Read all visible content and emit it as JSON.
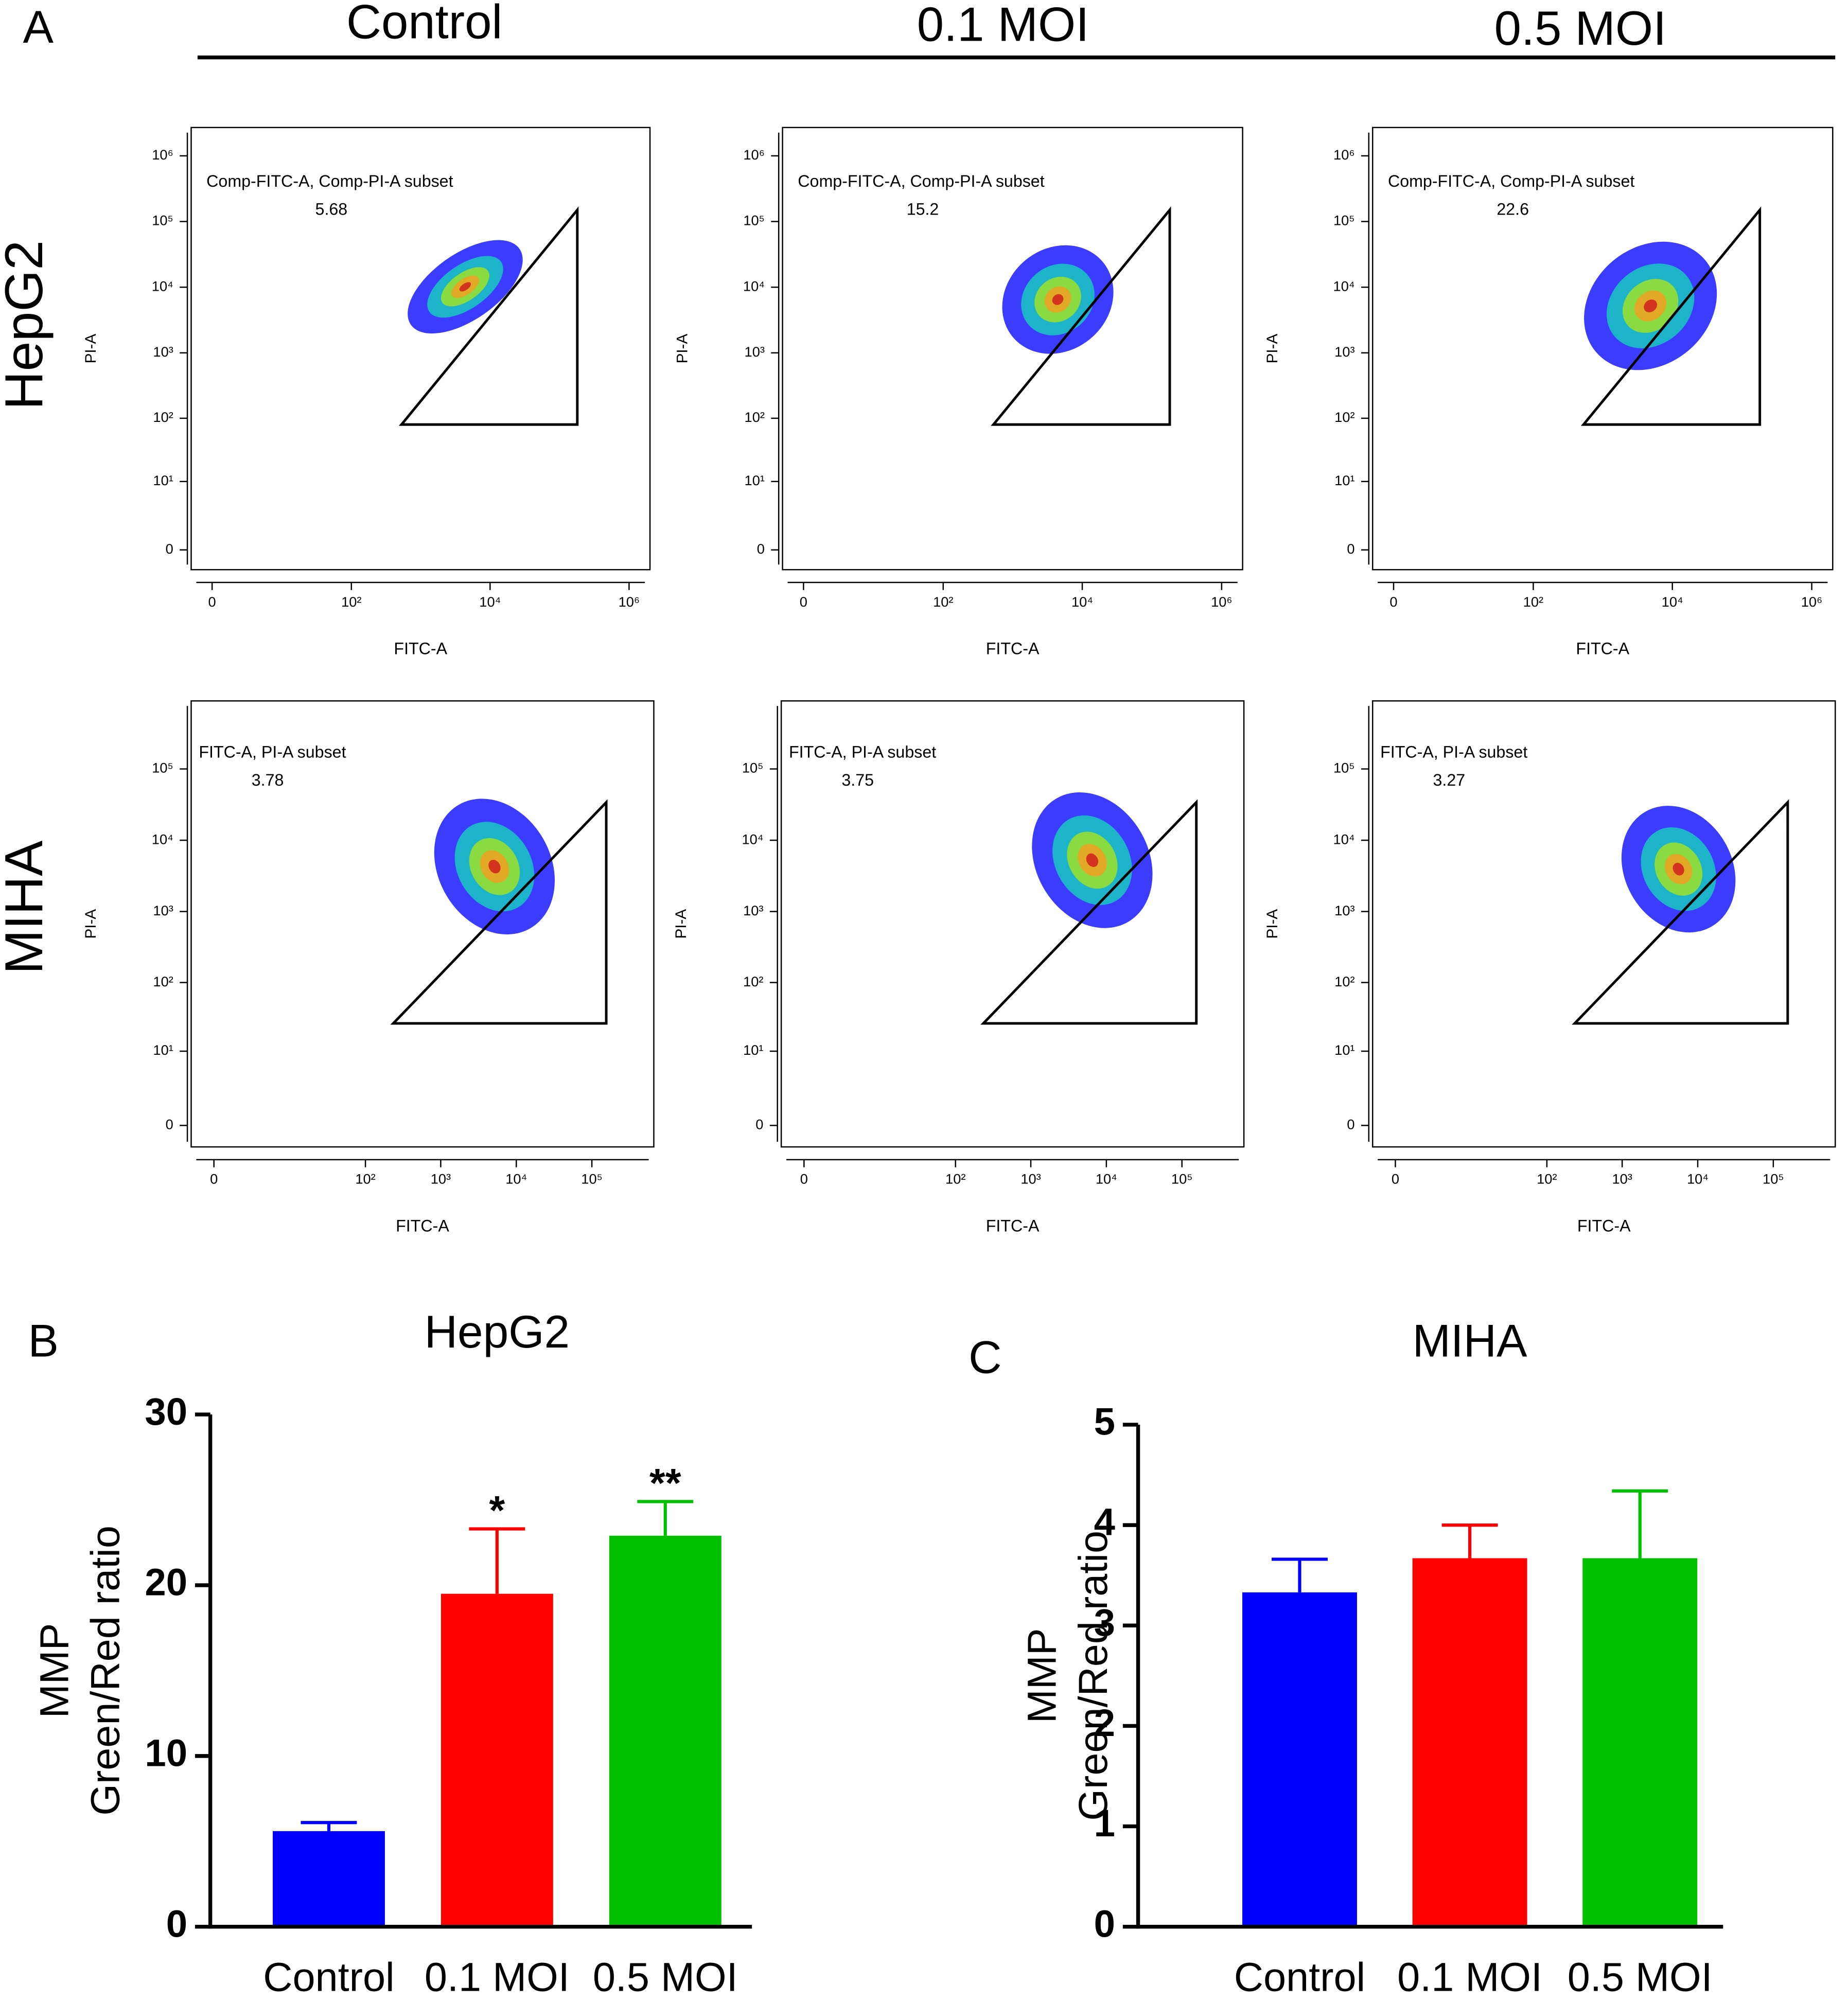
{
  "figure": {
    "panel_labels": [
      "A",
      "B",
      "C"
    ],
    "column_headers": [
      "Control",
      "0.1 MOI",
      "0.5 MOI"
    ],
    "row_labels": [
      "HepG2",
      "MIHA"
    ]
  },
  "chart_data": [
    {
      "type": "scatter",
      "gate_label": "Comp-FITC-A, Comp-PI-A subset",
      "gate_value": 5.68,
      "x_label": "FITC-A",
      "y_label": "PI-A",
      "xscale": "biex",
      "yscale": "biex",
      "xlim": [
        -1,
        2000000
      ],
      "ylim": [
        -1,
        2700000
      ],
      "gate": [
        [
          530,
          80
        ],
        [
          180000,
          150000
        ],
        [
          180000,
          80
        ]
      ],
      "xticks": [
        0,
        {
          "value": 100,
          "label": "10²"
        },
        {
          "value": 10000,
          "label": "10⁴"
        },
        {
          "value": 1000000,
          "label": "10⁶"
        }
      ],
      "yticks": [
        0,
        {
          "value": 10,
          "label": "10¹"
        },
        {
          "value": 100,
          "label": "10²"
        },
        {
          "value": 1000,
          "label": "10³"
        },
        {
          "value": 10000,
          "label": "10⁴"
        },
        {
          "value": 100000,
          "label": "10⁵"
        },
        {
          "value": 1000000,
          "label": "10⁶"
        }
      ]
    },
    {
      "type": "scatter",
      "gate_label": "Comp-FITC-A, Comp-PI-A subset",
      "gate_value": 15.2,
      "x_label": "FITC-A",
      "y_label": "PI-A",
      "xscale": "biex",
      "yscale": "biex",
      "xlim": [
        -1,
        2000000
      ],
      "ylim": [
        -1,
        2700000
      ],
      "gate": [
        [
          530,
          80
        ],
        [
          180000,
          150000
        ],
        [
          180000,
          80
        ]
      ],
      "xticks": [
        0,
        {
          "value": 100,
          "label": "10²"
        },
        {
          "value": 10000,
          "label": "10⁴"
        },
        {
          "value": 1000000,
          "label": "10⁶"
        }
      ],
      "yticks": [
        0,
        {
          "value": 10,
          "label": "10¹"
        },
        {
          "value": 100,
          "label": "10²"
        },
        {
          "value": 1000,
          "label": "10³"
        },
        {
          "value": 10000,
          "label": "10⁴"
        },
        {
          "value": 100000,
          "label": "10⁵"
        },
        {
          "value": 1000000,
          "label": "10⁶"
        }
      ]
    },
    {
      "type": "scatter",
      "gate_label": "Comp-FITC-A, Comp-PI-A subset",
      "gate_value": 22.6,
      "x_label": "FITC-A",
      "y_label": "PI-A",
      "xscale": "biex",
      "yscale": "biex",
      "xlim": [
        -1,
        2000000
      ],
      "ylim": [
        -1,
        2700000
      ],
      "gate": [
        [
          530,
          80
        ],
        [
          180000,
          150000
        ],
        [
          180000,
          80
        ]
      ],
      "xticks": [
        0,
        {
          "value": 100,
          "label": "10²"
        },
        {
          "value": 10000,
          "label": "10⁴"
        },
        {
          "value": 1000000,
          "label": "10⁶"
        }
      ],
      "yticks": [
        0,
        {
          "value": 10,
          "label": "10¹"
        },
        {
          "value": 100,
          "label": "10²"
        },
        {
          "value": 1000,
          "label": "10³"
        },
        {
          "value": 10000,
          "label": "10⁴"
        },
        {
          "value": 100000,
          "label": "10⁵"
        },
        {
          "value": 1000000,
          "label": "10⁶"
        }
      ]
    },
    {
      "type": "scatter",
      "gate_label": "FITC-A, PI-A subset",
      "gate_value": 3.78,
      "x_label": "FITC-A",
      "y_label": "PI-A",
      "xscale": "biex",
      "yscale": "biex",
      "xlim": [
        -1,
        660000
      ],
      "ylim": [
        -1,
        900000
      ],
      "gate": [
        [
          235,
          26
        ],
        [
          155000,
          34000
        ],
        [
          155000,
          26
        ]
      ],
      "xticks": [
        0,
        {
          "value": 100,
          "label": "10²"
        },
        {
          "value": 1000,
          "label": "10³"
        },
        {
          "value": 10000,
          "label": "10⁴"
        },
        {
          "value": 100000,
          "label": "10⁵"
        }
      ],
      "yticks": [
        0,
        {
          "value": 10,
          "label": "10¹"
        },
        {
          "value": 100,
          "label": "10²"
        },
        {
          "value": 1000,
          "label": "10³"
        },
        {
          "value": 10000,
          "label": "10⁴"
        },
        {
          "value": 100000,
          "label": "10⁵"
        }
      ]
    },
    {
      "type": "scatter",
      "gate_label": "FITC-A, PI-A subset",
      "gate_value": 3.75,
      "x_label": "FITC-A",
      "y_label": "PI-A",
      "xscale": "biex",
      "yscale": "biex",
      "xlim": [
        -1,
        660000
      ],
      "ylim": [
        -1,
        900000
      ],
      "gate": [
        [
          235,
          26
        ],
        [
          155000,
          34000
        ],
        [
          155000,
          26
        ]
      ],
      "xticks": [
        0,
        {
          "value": 100,
          "label": "10²"
        },
        {
          "value": 1000,
          "label": "10³"
        },
        {
          "value": 10000,
          "label": "10⁴"
        },
        {
          "value": 100000,
          "label": "10⁵"
        }
      ],
      "yticks": [
        0,
        {
          "value": 10,
          "label": "10¹"
        },
        {
          "value": 100,
          "label": "10²"
        },
        {
          "value": 1000,
          "label": "10³"
        },
        {
          "value": 10000,
          "label": "10⁴"
        },
        {
          "value": 100000,
          "label": "10⁵"
        }
      ]
    },
    {
      "type": "scatter",
      "gate_label": "FITC-A, PI-A subset",
      "gate_value": 3.27,
      "x_label": "FITC-A",
      "y_label": "PI-A",
      "xscale": "biex",
      "yscale": "biex",
      "xlim": [
        -1,
        660000
      ],
      "ylim": [
        -1,
        900000
      ],
      "gate": [
        [
          235,
          26
        ],
        [
          155000,
          34000
        ],
        [
          155000,
          26
        ]
      ],
      "xticks": [
        0,
        {
          "value": 100,
          "label": "10²"
        },
        {
          "value": 1000,
          "label": "10³"
        },
        {
          "value": 10000,
          "label": "10⁴"
        },
        {
          "value": 100000,
          "label": "10⁵"
        }
      ],
      "yticks": [
        0,
        {
          "value": 10,
          "label": "10¹"
        },
        {
          "value": 100,
          "label": "10²"
        },
        {
          "value": 1000,
          "label": "10³"
        },
        {
          "value": 10000,
          "label": "10⁴"
        },
        {
          "value": 100000,
          "label": "10⁵"
        }
      ]
    },
    {
      "type": "bar",
      "title": "HepG2",
      "categories": [
        "Control",
        "0.1 MOI",
        "0.5 MOI"
      ],
      "values": [
        5.6,
        19.5,
        22.9
      ],
      "errors": [
        0.5,
        3.8,
        2.0
      ],
      "colors": [
        "#0000ff",
        "#ff0000",
        "#00c000"
      ],
      "significance": [
        null,
        "*",
        "**"
      ],
      "y_label": [
        "MMP",
        "Green/Red ratio"
      ],
      "ylim": [
        0,
        30
      ],
      "yticks": [
        0,
        10,
        20,
        30
      ]
    },
    {
      "type": "bar",
      "title": "MIHA",
      "categories": [
        "Control",
        "0.1 MOI",
        "0.5 MOI"
      ],
      "values": [
        3.33,
        3.67,
        3.67
      ],
      "errors": [
        0.33,
        0.33,
        0.67
      ],
      "colors": [
        "#0000ff",
        "#ff0000",
        "#00c000"
      ],
      "y_label": [
        "MMP",
        "Green/Red ratio"
      ],
      "ylim": [
        0,
        5
      ],
      "yticks": [
        0,
        1,
        2,
        3,
        4,
        5
      ]
    }
  ]
}
